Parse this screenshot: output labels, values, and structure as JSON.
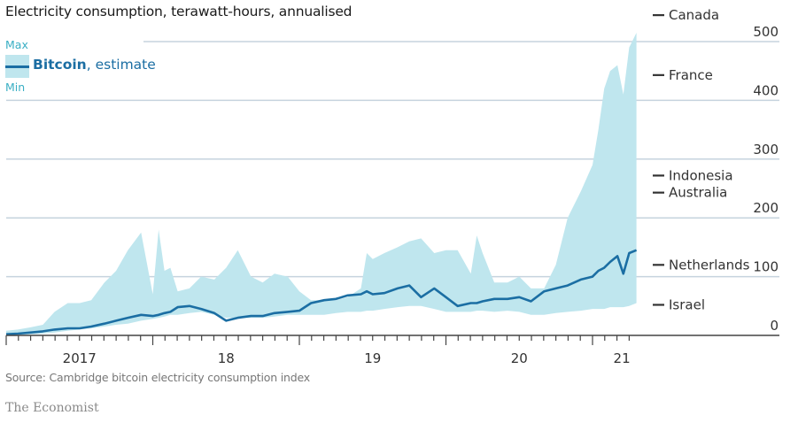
{
  "subtitle": "Electricity consumption, terawatt-hours, annualised",
  "legend": {
    "max_label": "Max",
    "min_label": "Min",
    "series_bold": "Bitcoin",
    "series_rest": ", estimate"
  },
  "source": "Source: Cambridge bitcoin electricity consumption index",
  "brand": "The Economist",
  "colors": {
    "line": "#1b6ea3",
    "band": "#bfe6ee",
    "grid": "#c6d3de",
    "axis": "#444444"
  },
  "chart_data": {
    "type": "area",
    "title": "",
    "subtitle": "Electricity consumption, terawatt-hours, annualised",
    "xlabel": "",
    "ylabel": "Terawatt-hours, annualised",
    "ylim": [
      0,
      500
    ],
    "yticks": [
      0,
      100,
      200,
      300,
      400,
      500
    ],
    "xlim": [
      2017.0,
      2021.33
    ],
    "xticks": [
      {
        "value": 2017.5,
        "label": "2017"
      },
      {
        "value": 2018.5,
        "label": "18"
      },
      {
        "value": 2019.5,
        "label": "19"
      },
      {
        "value": 2020.5,
        "label": "20"
      },
      {
        "value": 2021.2,
        "label": "21"
      }
    ],
    "x_major_ticks": [
      2017,
      2018,
      2019,
      2020,
      2021
    ],
    "x_minor_ticks": "monthly",
    "grid": true,
    "legend": "top-left",
    "x": [
      2017.0,
      2017.08,
      2017.17,
      2017.25,
      2017.33,
      2017.42,
      2017.5,
      2017.58,
      2017.67,
      2017.75,
      2017.83,
      2017.92,
      2018.0,
      2018.04,
      2018.08,
      2018.12,
      2018.17,
      2018.25,
      2018.33,
      2018.42,
      2018.5,
      2018.58,
      2018.67,
      2018.75,
      2018.83,
      2018.92,
      2019.0,
      2019.08,
      2019.17,
      2019.25,
      2019.33,
      2019.42,
      2019.46,
      2019.5,
      2019.58,
      2019.67,
      2019.75,
      2019.83,
      2019.92,
      2020.0,
      2020.08,
      2020.17,
      2020.21,
      2020.25,
      2020.33,
      2020.42,
      2020.5,
      2020.58,
      2020.67,
      2020.75,
      2020.83,
      2020.92,
      2021.0,
      2021.04,
      2021.08,
      2021.12,
      2021.17,
      2021.21,
      2021.25,
      2021.3
    ],
    "series": [
      {
        "name": "Max",
        "values": [
          8,
          10,
          14,
          18,
          40,
          55,
          55,
          60,
          90,
          110,
          145,
          175,
          70,
          180,
          110,
          115,
          75,
          80,
          100,
          95,
          115,
          145,
          100,
          90,
          105,
          100,
          75,
          60,
          60,
          60,
          65,
          80,
          140,
          130,
          140,
          150,
          160,
          165,
          140,
          145,
          145,
          105,
          170,
          140,
          90,
          90,
          100,
          80,
          80,
          120,
          200,
          245,
          290,
          350,
          420,
          450,
          460,
          410,
          490,
          515
        ]
      },
      {
        "name": "Bitcoin, estimate",
        "values": [
          2,
          3,
          5,
          7,
          10,
          12,
          12,
          15,
          20,
          25,
          30,
          35,
          33,
          35,
          38,
          40,
          48,
          50,
          45,
          38,
          25,
          30,
          33,
          33,
          38,
          40,
          42,
          55,
          60,
          62,
          68,
          70,
          75,
          70,
          72,
          80,
          85,
          65,
          80,
          65,
          50,
          55,
          55,
          58,
          62,
          62,
          65,
          58,
          75,
          80,
          85,
          95,
          100,
          110,
          115,
          125,
          135,
          105,
          140,
          145
        ]
      },
      {
        "name": "Min",
        "values": [
          0,
          1,
          2,
          3,
          5,
          8,
          10,
          12,
          15,
          18,
          20,
          25,
          28,
          30,
          32,
          35,
          35,
          38,
          40,
          35,
          30,
          30,
          30,
          30,
          32,
          35,
          35,
          35,
          35,
          38,
          40,
          40,
          42,
          42,
          45,
          48,
          50,
          50,
          45,
          40,
          40,
          40,
          42,
          42,
          40,
          42,
          40,
          35,
          35,
          38,
          40,
          42,
          45,
          45,
          45,
          48,
          48,
          48,
          50,
          55
        ]
      }
    ],
    "reference_lines": [
      {
        "label": "Canada",
        "value": 545
      },
      {
        "label": "France",
        "value": 443
      },
      {
        "label": "Indonesia",
        "value": 272
      },
      {
        "label": "Australia",
        "value": 243
      },
      {
        "label": "Netherlands",
        "value": 120
      },
      {
        "label": "Israel",
        "value": 52
      }
    ]
  }
}
